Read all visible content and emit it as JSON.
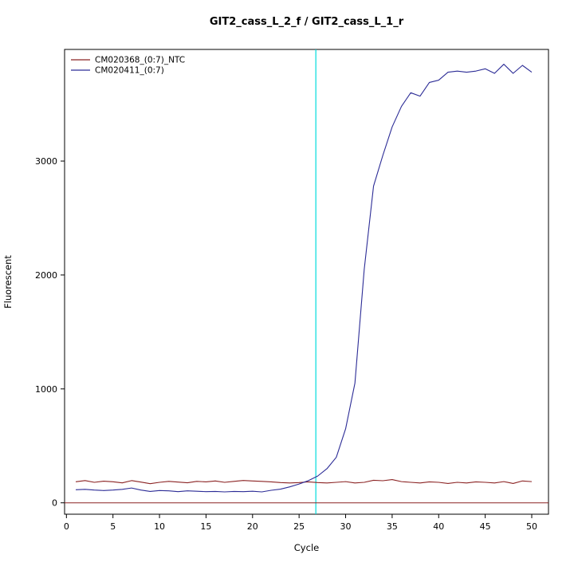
{
  "title": "GIT2_cass_L_2_f / GIT2_cass_L_1_r",
  "chart_data": {
    "type": "line",
    "title": "GIT2_cass_L_2_f / GIT2_cass_L_1_r",
    "xlabel": "Cycle",
    "ylabel": "Fluorescent",
    "xlim": [
      -0.2,
      51.8
    ],
    "ylim": [
      -100,
      3980
    ],
    "xticks": [
      0,
      5,
      10,
      15,
      20,
      25,
      30,
      35,
      40,
      45,
      50
    ],
    "yticks": [
      0,
      1000,
      2000,
      3000
    ],
    "grid": false,
    "legend_position": "top-left",
    "threshold_line": {
      "x": 26.8,
      "color": "#00dddd"
    },
    "baseline": {
      "y": 0,
      "color": "#8b2323"
    },
    "cycles": [
      1,
      2,
      3,
      4,
      5,
      6,
      7,
      8,
      9,
      10,
      11,
      12,
      13,
      14,
      15,
      16,
      17,
      18,
      19,
      20,
      21,
      22,
      23,
      24,
      25,
      26,
      27,
      28,
      29,
      30,
      31,
      32,
      33,
      34,
      35,
      36,
      37,
      38,
      39,
      40,
      41,
      42,
      43,
      44,
      45,
      46,
      47,
      48,
      49,
      50
    ],
    "series": [
      {
        "name": "CM020368_(0:7)_NTC",
        "color": "#8b2323",
        "values": [
          185,
          195,
          180,
          190,
          185,
          175,
          195,
          182,
          168,
          180,
          188,
          182,
          176,
          188,
          184,
          192,
          180,
          188,
          196,
          192,
          188,
          184,
          178,
          174,
          178,
          184,
          178,
          174,
          180,
          186,
          174,
          180,
          198,
          194,
          204,
          186,
          180,
          174,
          184,
          180,
          170,
          180,
          174,
          184,
          180,
          174,
          186,
          170,
          192,
          186
        ]
      },
      {
        "name": "CM020411_(0:7)",
        "color": "#2c2c96",
        "values": [
          115,
          118,
          112,
          108,
          112,
          118,
          130,
          112,
          100,
          108,
          105,
          98,
          105,
          102,
          98,
          100,
          96,
          100,
          98,
          102,
          96,
          110,
          120,
          140,
          165,
          195,
          235,
          300,
          400,
          650,
          1050,
          2050,
          2780,
          3050,
          3300,
          3480,
          3600,
          3570,
          3690,
          3710,
          3780,
          3790,
          3780,
          3790,
          3810,
          3770,
          3850,
          3770,
          3840,
          3780
        ]
      }
    ]
  }
}
